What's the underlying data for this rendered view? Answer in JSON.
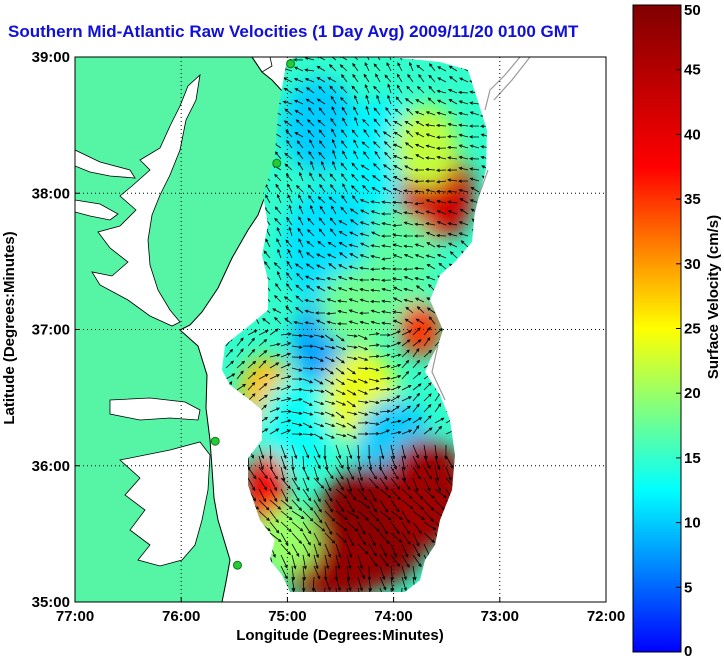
{
  "title": "Southern Mid-Atlantic Raw Velocities (1 Day Avg) 2009/11/20 0100 GMT",
  "map": {
    "xlabel": "Longitude (Degrees:Minutes)",
    "ylabel": "Latitude (Degrees:Minutes)",
    "x_ticks": [
      "77:00",
      "76:00",
      "75:00",
      "74:00",
      "73:00",
      "72:00"
    ],
    "y_ticks": [
      "39:00",
      "38:00",
      "37:00",
      "36:00",
      "35:00"
    ],
    "lon_range": [
      -77,
      -72
    ],
    "lat_range": [
      35,
      39
    ],
    "land_color": "#55f5a5",
    "water_color": "#ffffff",
    "grid": "dotted"
  },
  "colorbar": {
    "label": "Surface Velocity (cm/s)",
    "ticks": [
      "50",
      "45",
      "40",
      "35",
      "30",
      "25",
      "20",
      "15",
      "10",
      "5",
      "0"
    ],
    "range": [
      0,
      50
    ],
    "colormap": "jet"
  },
  "stations": [
    {
      "lon": -74.97,
      "lat": 38.95
    },
    {
      "lon": -75.1,
      "lat": 38.22
    },
    {
      "lon": -75.68,
      "lat": 36.18
    },
    {
      "lon": -75.47,
      "lat": 35.27
    }
  ],
  "speed_patches": [
    {
      "lon": -74.7,
      "lat": 38.5,
      "rx": 0.35,
      "ry": 0.35,
      "v": 10
    },
    {
      "lon": -74.1,
      "lat": 38.3,
      "rx": 0.4,
      "ry": 0.4,
      "v": 12
    },
    {
      "lon": -73.6,
      "lat": 38.0,
      "rx": 0.35,
      "ry": 0.35,
      "v": 42
    },
    {
      "lon": -73.7,
      "lat": 38.35,
      "rx": 0.3,
      "ry": 0.3,
      "v": 22
    },
    {
      "lon": -74.6,
      "lat": 37.6,
      "rx": 0.45,
      "ry": 0.45,
      "v": 11
    },
    {
      "lon": -73.95,
      "lat": 37.5,
      "rx": 0.35,
      "ry": 0.35,
      "v": 17
    },
    {
      "lon": -73.75,
      "lat": 37.0,
      "rx": 0.2,
      "ry": 0.2,
      "v": 35
    },
    {
      "lon": -74.6,
      "lat": 36.9,
      "rx": 0.35,
      "ry": 0.35,
      "v": 8
    },
    {
      "lon": -75.2,
      "lat": 36.55,
      "rx": 0.25,
      "ry": 0.25,
      "v": 28
    },
    {
      "lon": -74.9,
      "lat": 36.3,
      "rx": 0.35,
      "ry": 0.35,
      "v": 13
    },
    {
      "lon": -74.3,
      "lat": 36.5,
      "rx": 0.35,
      "ry": 0.35,
      "v": 24
    },
    {
      "lon": -74.0,
      "lat": 36.15,
      "rx": 0.35,
      "ry": 0.35,
      "v": 10
    },
    {
      "lon": -74.2,
      "lat": 35.55,
      "rx": 0.55,
      "ry": 0.45,
      "v": 49
    },
    {
      "lon": -73.7,
      "lat": 35.8,
      "rx": 0.4,
      "ry": 0.4,
      "v": 47
    },
    {
      "lon": -74.55,
      "lat": 35.25,
      "rx": 0.5,
      "ry": 0.25,
      "v": 48
    },
    {
      "lon": -75.2,
      "lat": 35.8,
      "rx": 0.2,
      "ry": 0.3,
      "v": 38
    },
    {
      "lon": -75.0,
      "lat": 35.45,
      "rx": 0.3,
      "ry": 0.25,
      "v": 20
    },
    {
      "lon": -74.35,
      "lat": 37.15,
      "rx": 0.35,
      "ry": 0.3,
      "v": 18
    }
  ]
}
